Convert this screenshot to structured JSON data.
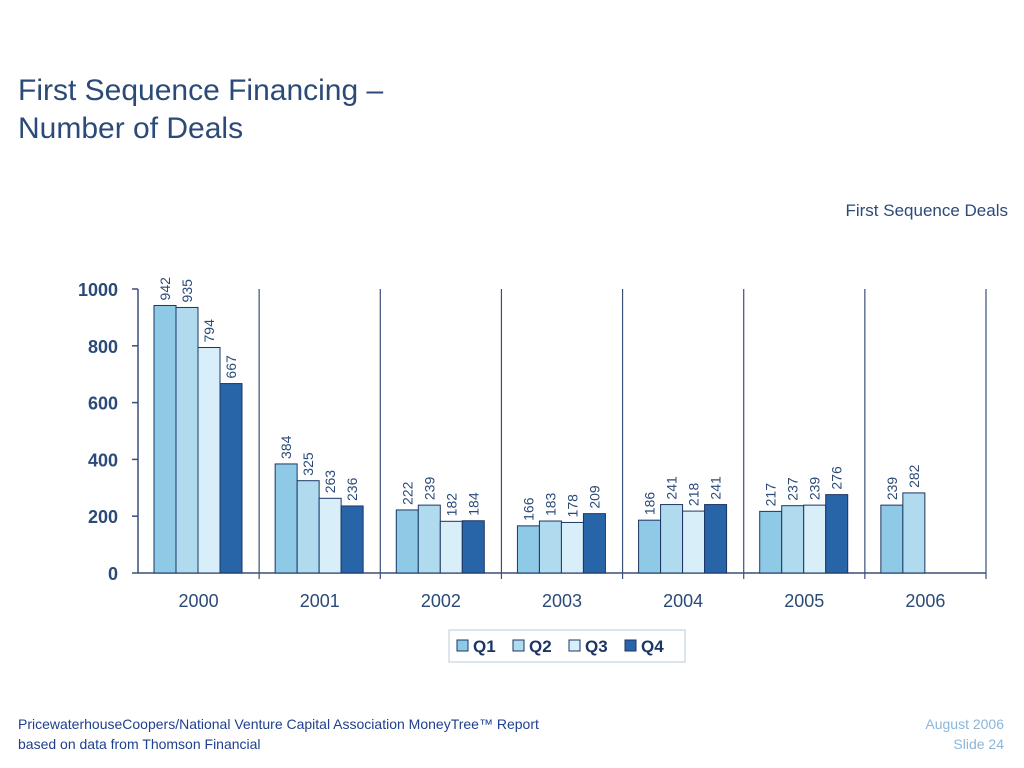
{
  "slide": {
    "title_line1": "First Sequence Financing –",
    "title_line2": "Number of Deals",
    "footer_line1": "PricewaterhouseCoopers/National Venture Capital Association MoneyTree™ Report",
    "footer_line2": "based on data from Thomson Financial",
    "date": "August 2006",
    "slide_number": "Slide 24"
  },
  "chart_data": {
    "type": "bar",
    "title": "First Sequence Deals",
    "xlabel": "",
    "ylabel": "",
    "categories": [
      "2000",
      "2001",
      "2002",
      "2003",
      "2004",
      "2005",
      "2006"
    ],
    "series": [
      {
        "name": "Q1",
        "color": "#8ecae6",
        "values": [
          942,
          384,
          222,
          166,
          186,
          217,
          239
        ]
      },
      {
        "name": "Q2",
        "color": "#b0dbee",
        "values": [
          935,
          325,
          239,
          183,
          241,
          237,
          282
        ]
      },
      {
        "name": "Q3",
        "color": "#d8eef8",
        "values": [
          794,
          263,
          182,
          178,
          218,
          239,
          null
        ]
      },
      {
        "name": "Q4",
        "color": "#2765a8",
        "values": [
          667,
          236,
          184,
          209,
          241,
          276,
          null
        ]
      }
    ],
    "ylim": [
      0,
      1000
    ],
    "yticks": [
      0,
      200,
      400,
      600,
      800,
      1000
    ],
    "grid": false,
    "legend_position": "bottom",
    "bar_outline_color": "#1c3564",
    "axis_color": "#3a4f7a"
  }
}
